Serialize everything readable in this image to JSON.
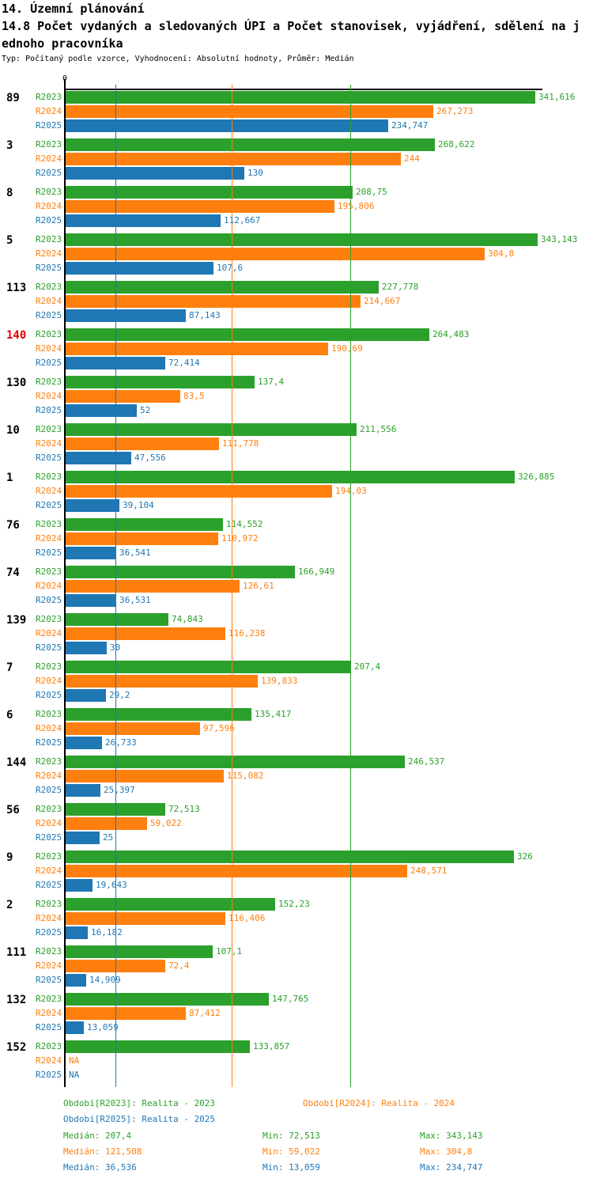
{
  "header": {
    "title": "14. Územní plánování",
    "subtitle_lines": [
      "14.8 Počet vydaných a sledovaných ÚPI a Počet stanovisek, vyjádření, sdělení na j",
      "ednoho pracovníka"
    ],
    "meta": "Typ: Počítaný podle vzorce, Vyhodnocení: Absolutní hodnoty, Průměr: Medián"
  },
  "axis": {
    "zero_label": "0"
  },
  "chart_data": {
    "type": "bar",
    "orientation": "horizontal",
    "xlim": [
      0,
      347
    ],
    "grid": false,
    "series_names": [
      "R2023",
      "R2024",
      "R2025"
    ],
    "series_colors": [
      "#2ca02c",
      "#ff7f0e",
      "#1f77b4"
    ],
    "groups": [
      {
        "label": "89",
        "label_color": "#000000",
        "values": [
          341.616,
          267.273,
          234.747
        ],
        "value_labels": [
          "341,616",
          "267,273",
          "234,747"
        ]
      },
      {
        "label": "3",
        "label_color": "#000000",
        "values": [
          268.622,
          244,
          130
        ],
        "value_labels": [
          "268,622",
          "244",
          "130"
        ]
      },
      {
        "label": "8",
        "label_color": "#000000",
        "values": [
          208.75,
          195.806,
          112.667
        ],
        "value_labels": [
          "208,75",
          "195,806",
          "112,667"
        ]
      },
      {
        "label": "5",
        "label_color": "#000000",
        "values": [
          343.143,
          304.8,
          107.6
        ],
        "value_labels": [
          "343,143",
          "304,8",
          "107,6"
        ]
      },
      {
        "label": "113",
        "label_color": "#000000",
        "values": [
          227.778,
          214.667,
          87.143
        ],
        "value_labels": [
          "227,778",
          "214,667",
          "87,143"
        ]
      },
      {
        "label": "140",
        "label_color": "#e60000",
        "values": [
          264.483,
          190.69,
          72.414
        ],
        "value_labels": [
          "264,483",
          "190,69",
          "72,414"
        ]
      },
      {
        "label": "130",
        "label_color": "#000000",
        "values": [
          137.4,
          83.5,
          52
        ],
        "value_labels": [
          "137,4",
          "83,5",
          "52"
        ]
      },
      {
        "label": "10",
        "label_color": "#000000",
        "values": [
          211.556,
          111.778,
          47.556
        ],
        "value_labels": [
          "211,556",
          "111,778",
          "47,556"
        ]
      },
      {
        "label": "1",
        "label_color": "#000000",
        "values": [
          326.885,
          194.03,
          39.104
        ],
        "value_labels": [
          "326,885",
          "194,03",
          "39,104"
        ]
      },
      {
        "label": "76",
        "label_color": "#000000",
        "values": [
          114.552,
          110.972,
          36.541
        ],
        "value_labels": [
          "114,552",
          "110,972",
          "36,541"
        ]
      },
      {
        "label": "74",
        "label_color": "#000000",
        "values": [
          166.949,
          126.61,
          36.531
        ],
        "value_labels": [
          "166,949",
          "126,61",
          "36,531"
        ]
      },
      {
        "label": "139",
        "label_color": "#000000",
        "values": [
          74.843,
          116.238,
          30
        ],
        "value_labels": [
          "74,843",
          "116,238",
          "30"
        ]
      },
      {
        "label": "7",
        "label_color": "#000000",
        "values": [
          207.4,
          139.833,
          29.2
        ],
        "value_labels": [
          "207,4",
          "139,833",
          "29,2"
        ]
      },
      {
        "label": "6",
        "label_color": "#000000",
        "values": [
          135.417,
          97.596,
          26.733
        ],
        "value_labels": [
          "135,417",
          "97,596",
          "26,733"
        ]
      },
      {
        "label": "144",
        "label_color": "#000000",
        "values": [
          246.537,
          115.082,
          25.397
        ],
        "value_labels": [
          "246,537",
          "115,082",
          "25,397"
        ]
      },
      {
        "label": "56",
        "label_color": "#000000",
        "values": [
          72.513,
          59.022,
          25
        ],
        "value_labels": [
          "72,513",
          "59,022",
          "25"
        ]
      },
      {
        "label": "9",
        "label_color": "#000000",
        "values": [
          326,
          248.571,
          19.643
        ],
        "value_labels": [
          "326",
          "248,571",
          "19,643"
        ]
      },
      {
        "label": "2",
        "label_color": "#000000",
        "values": [
          152.23,
          116.406,
          16.182
        ],
        "value_labels": [
          "152,23",
          "116,406",
          "16,182"
        ]
      },
      {
        "label": "111",
        "label_color": "#000000",
        "values": [
          107.1,
          72.4,
          14.909
        ],
        "value_labels": [
          "107,1",
          "72,4",
          "14,909"
        ]
      },
      {
        "label": "132",
        "label_color": "#000000",
        "values": [
          147.765,
          87.412,
          13.059
        ],
        "value_labels": [
          "147,765",
          "87,412",
          "13,059"
        ]
      },
      {
        "label": "152",
        "label_color": "#000000",
        "values": [
          133.857,
          null,
          null
        ],
        "value_labels": [
          "133,857",
          "NA",
          "NA"
        ]
      }
    ],
    "median_lines": [
      {
        "series": "R2023",
        "value": 207.4,
        "color": "#2ca02c"
      },
      {
        "series": "R2024",
        "value": 121.508,
        "color": "#ff7f0e"
      },
      {
        "series": "R2025",
        "value": 36.536,
        "color": "#1f77b4"
      }
    ]
  },
  "legend": {
    "r2023": "Období[R2023]: Realita - 2023",
    "r2024": "Období[R2024]: Realita - 2024",
    "r2025": "Období[R2025]: Realita - 2025"
  },
  "stats": {
    "r2023": {
      "median": "Medián: 207,4",
      "min": "Min: 72,513",
      "max": "Max: 343,143"
    },
    "r2024": {
      "median": "Medián: 121,508",
      "min": "Min: 59,022",
      "max": "Max: 304,8"
    },
    "r2025": {
      "median": "Medián: 36,536",
      "min": "Min: 13,059",
      "max": "Max: 234,747"
    }
  }
}
